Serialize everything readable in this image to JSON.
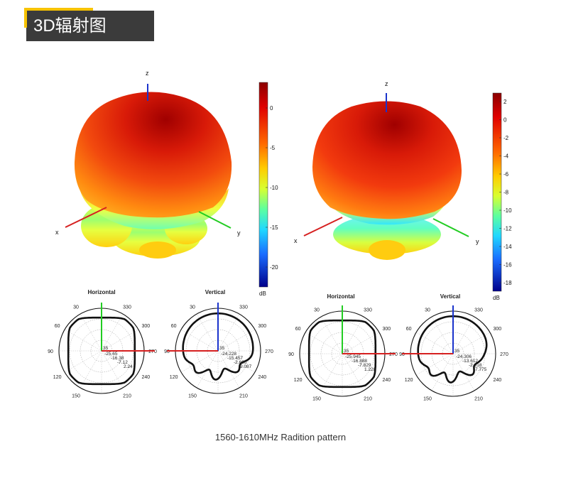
{
  "header": {
    "title": "3D辐射图"
  },
  "patterns": [
    {
      "axis_labels": {
        "z": "z",
        "x": "x",
        "y": "y"
      },
      "colorbar": {
        "ticks": [
          "0",
          "-5",
          "-10",
          "-15",
          "-20"
        ],
        "unit": "dB"
      },
      "polar": [
        {
          "title": "Horizontal",
          "angles": [
            "30",
            "330",
            "60",
            "300",
            "90",
            "270",
            "120",
            "240",
            "150",
            "210"
          ],
          "center_label": "35",
          "values": [
            "-25.65",
            "-16.38",
            "-7.12",
            "2.24"
          ]
        },
        {
          "title": "Vertical",
          "angles": [
            "30",
            "330",
            "60",
            "300",
            "90",
            "270",
            "120",
            "240",
            "150",
            "210"
          ],
          "center_label": "35",
          "values": [
            "-24.228",
            "-15.457",
            "-2.686",
            "9.087"
          ]
        }
      ]
    },
    {
      "axis_labels": {
        "z": "z",
        "x": "x",
        "y": "y"
      },
      "colorbar": {
        "ticks": [
          "2",
          "0",
          "-2",
          "-4",
          "-6",
          "-8",
          "-10",
          "-12",
          "-14",
          "-16",
          "-18"
        ],
        "unit": "dB"
      },
      "polar": [
        {
          "title": "Horizontal",
          "angles": [
            "30",
            "330",
            "60",
            "300",
            "90",
            "270",
            "120",
            "240",
            "150",
            "210"
          ],
          "center_label": "35",
          "values": [
            "-25.945",
            "-16.888",
            "-7.829",
            "1.228"
          ]
        },
        {
          "title": "Vertical",
          "angles": [
            "30",
            "330",
            "60",
            "300",
            "90",
            "270",
            "120",
            "240",
            "150",
            "210"
          ],
          "center_label": "35",
          "values": [
            "-24.306",
            "-13.612",
            "-2.918",
            "7.775"
          ]
        }
      ]
    }
  ],
  "caption": "1560-1610MHz Radition pattern",
  "colors": {
    "axis_x": "#d62020",
    "axis_y": "#22cc22",
    "axis_z": "#1a33cc",
    "header_bg": "#3b3b3b",
    "accent": "#f7c300"
  }
}
